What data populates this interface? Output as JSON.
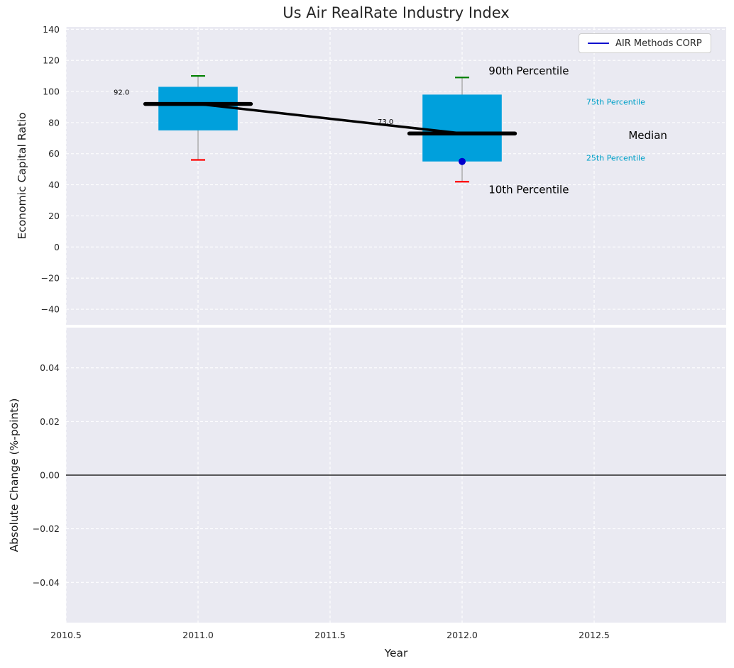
{
  "chart_data": [
    {
      "type": "boxplot",
      "title": "Us Air RealRate Industry Index",
      "ylabel": "Economic Capital Ratio",
      "xlabel": "",
      "ylim": [
        -50,
        141.5
      ],
      "xlim": [
        2010.5,
        2013.0
      ],
      "grid": true,
      "legend_label": "AIR Methods CORP",
      "legend_position": "upper right",
      "yticks": [
        {
          "v": 140,
          "label": "140"
        },
        {
          "v": 120,
          "label": "120"
        },
        {
          "v": 100,
          "label": "100"
        },
        {
          "v": 80,
          "label": "80"
        },
        {
          "v": 60,
          "label": "60"
        },
        {
          "v": 40,
          "label": "40"
        },
        {
          "v": 20,
          "label": "20"
        },
        {
          "v": 0,
          "label": "0"
        },
        {
          "v": -20,
          "label": "−20"
        },
        {
          "v": -40,
          "label": "−40"
        }
      ],
      "xticks": [
        {
          "v": 2010.5,
          "label": "2010.5"
        },
        {
          "v": 2011.0,
          "label": "2011.0"
        },
        {
          "v": 2011.5,
          "label": "2011.5"
        },
        {
          "v": 2012.0,
          "label": "2012.0"
        },
        {
          "v": 2012.5,
          "label": "2012.5"
        }
      ],
      "show_x_tick_labels": false,
      "boxes": [
        {
          "x": 2011,
          "p10": 56,
          "p25": 75,
          "median": 92,
          "p75": 103,
          "p90": 110,
          "median_label": "92.0"
        },
        {
          "x": 2012,
          "p10": 42,
          "p25": 55,
          "median": 73,
          "p75": 98,
          "p90": 109,
          "median_label": "73.0"
        }
      ],
      "median_line": [
        [
          2011,
          92
        ],
        [
          2012,
          73
        ]
      ],
      "company_point": {
        "x": 2012,
        "y": 55,
        "series": "AIR Methods CORP"
      },
      "annotations": [
        {
          "text": "90th Percentile",
          "x": 2012.1,
          "y": 111.0,
          "color": "#000000",
          "size": 15
        },
        {
          "text": "75th Percentile",
          "x": 2012.47,
          "y": 91.5,
          "color": "#00a0c8",
          "size": 11
        },
        {
          "text": "Median",
          "x": 2012.63,
          "y": 69.5,
          "color": "#000000",
          "size": 15
        },
        {
          "text": "25th Percentile",
          "x": 2012.47,
          "y": 55.5,
          "color": "#00a0c8",
          "size": 11
        },
        {
          "text": "10th Percentile",
          "x": 2012.1,
          "y": 34.5,
          "color": "#000000",
          "size": 15
        }
      ]
    },
    {
      "type": "line",
      "title": "",
      "ylabel": "Absolute Change (%-points)",
      "xlabel": "Year",
      "ylim": [
        -0.055,
        0.055
      ],
      "xlim": [
        2010.5,
        2013.0
      ],
      "grid": true,
      "yticks": [
        {
          "v": 0.04,
          "label": "0.04"
        },
        {
          "v": 0.02,
          "label": "0.02"
        },
        {
          "v": 0.0,
          "label": "0.00"
        },
        {
          "v": -0.02,
          "label": "−0.02"
        },
        {
          "v": -0.04,
          "label": "−0.04"
        }
      ],
      "xticks": [
        {
          "v": 2010.5,
          "label": "2010.5"
        },
        {
          "v": 2011.0,
          "label": "2011.0"
        },
        {
          "v": 2011.5,
          "label": "2011.5"
        },
        {
          "v": 2012.0,
          "label": "2012.0"
        },
        {
          "v": 2012.5,
          "label": "2012.5"
        }
      ],
      "show_x_tick_labels": true,
      "zero_line": 0.0,
      "series": []
    }
  ],
  "colors": {
    "plot_bg": "#eaeaf2",
    "grid": "#ffffff",
    "tick_text": "#262626",
    "title_text": "#262626",
    "box_fill": "#00a0dc",
    "whisker": "#9c9c9c",
    "cap_90th": "#008000",
    "cap_10th": "#ff0000",
    "median": "#000000",
    "connector": "#000000",
    "company_dot": "#0000cd",
    "legend_line": "#0000cd",
    "zero_line": "#000000"
  }
}
